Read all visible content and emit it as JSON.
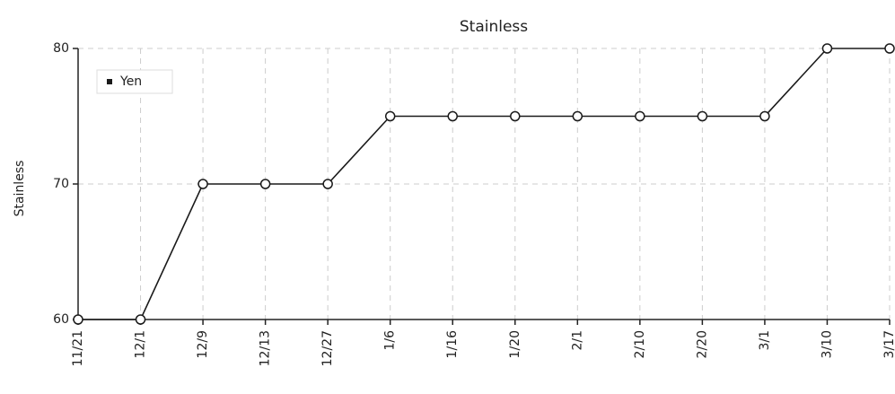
{
  "chart_data": {
    "type": "line",
    "title": "Stainless",
    "y_label": "Stainless",
    "categories": [
      "11/21",
      "12/1",
      "12/9",
      "12/13",
      "12/27",
      "1/6",
      "1/16",
      "1/20",
      "2/1",
      "2/10",
      "2/20",
      "3/1",
      "3/10",
      "3/17"
    ],
    "series": [
      {
        "name": "Yen",
        "color": "#1a1a1a",
        "values": [
          60,
          60,
          70,
          70,
          70,
          75,
          75,
          75,
          75,
          75,
          75,
          75,
          80,
          80
        ]
      }
    ],
    "ylim": [
      60,
      80
    ],
    "yticks": [
      60,
      70,
      80
    ],
    "grid": true,
    "legend": "top-left"
  }
}
